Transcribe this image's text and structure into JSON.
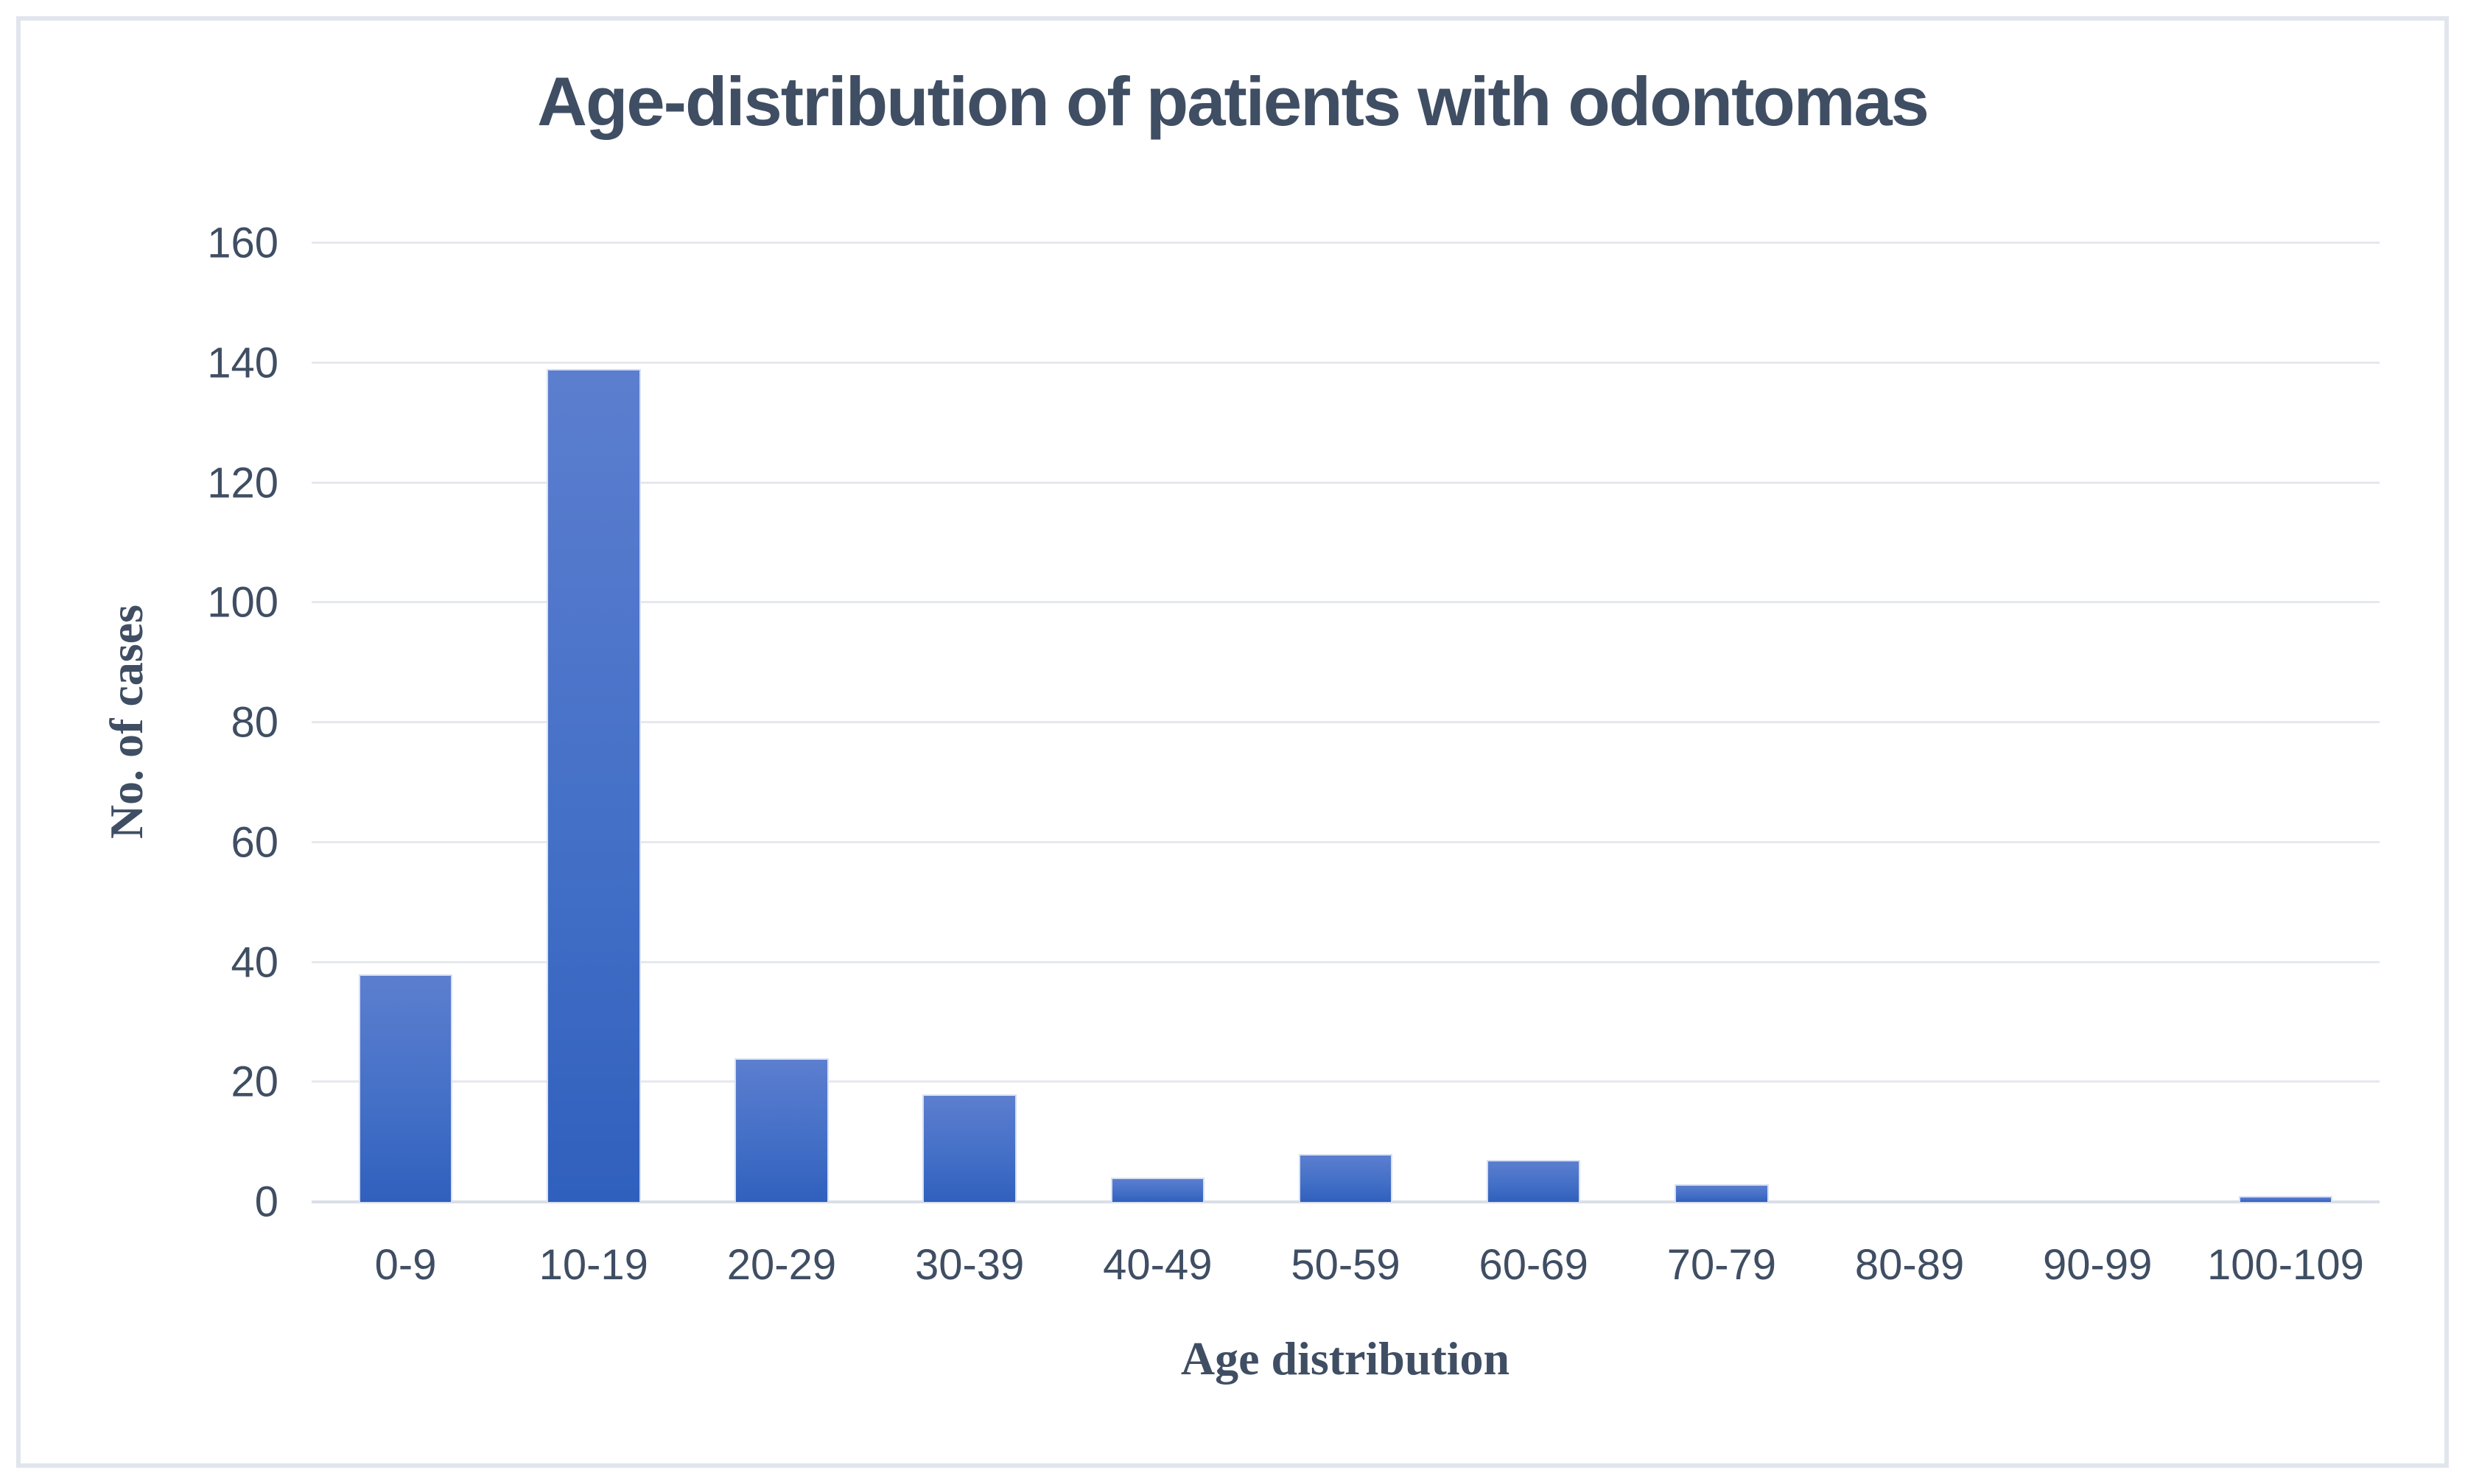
{
  "chart_data": {
    "type": "bar",
    "title": "Age-distribution of patients with odontomas",
    "xlabel": "Age distribution",
    "ylabel": "No. of cases",
    "categories": [
      "0-9",
      "10-19",
      "20-29",
      "30-39",
      "40-49",
      "50-59",
      "60-69",
      "70-79",
      "80-89",
      "90-99",
      "100-109"
    ],
    "values": [
      38,
      139,
      24,
      18,
      4,
      8,
      7,
      3,
      0,
      0,
      1
    ],
    "ylim": [
      0,
      160
    ],
    "yticks": [
      0,
      20,
      40,
      60,
      80,
      100,
      120,
      140,
      160
    ],
    "grid": "horizontal-only",
    "legend_position": "none",
    "bar_gap_ratio": 0.5,
    "colors": {
      "bar_gradient_top": "#5C7ECF",
      "bar_gradient_bottom": "#3060BD",
      "bar_edge": "#D7DFF3",
      "text": "#3F4E63",
      "gridline": "#E5E8EF",
      "axis_line": "#D9DEE7",
      "frame_border": "#E1E5EC",
      "background": "#FFFFFF"
    }
  }
}
